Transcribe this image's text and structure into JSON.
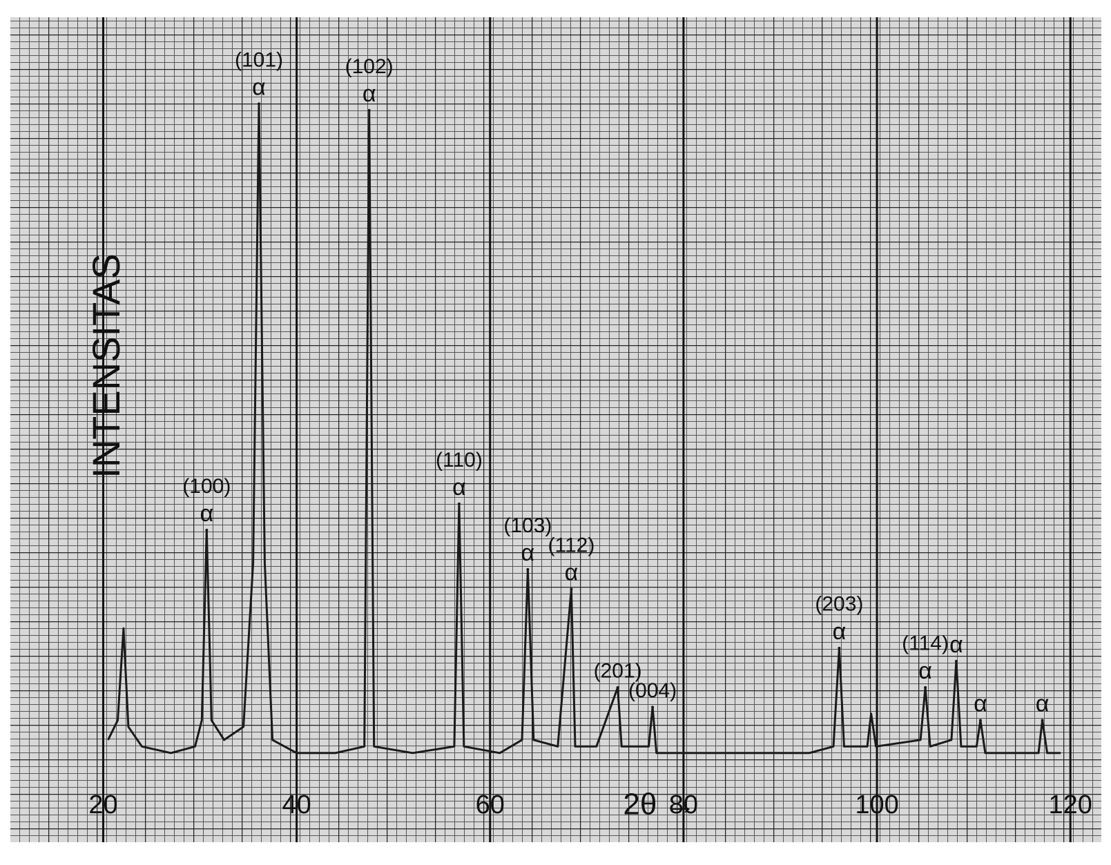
{
  "chart_data": {
    "type": "line",
    "ylabel": "INTENSITAS",
    "xlabel": "2θ →",
    "xlim": [
      10.4,
      123.2
    ],
    "ylim": [
      -12.6,
      113.2
    ],
    "xticks": [
      20,
      40,
      60,
      80,
      100,
      120
    ],
    "grid": true,
    "series": [
      {
        "color": "#1a1a1a",
        "x": [
          20.5,
          21.5,
          22.1,
          22.6,
          24,
          27,
          29.5,
          30.2,
          30.7,
          31.2,
          32.5,
          34.5,
          35.5,
          36.1,
          36.7,
          37.5,
          40,
          44,
          47,
          47.5,
          48,
          52,
          56.3,
          56.8,
          57.3,
          61,
          63.3,
          63.9,
          64.5,
          67,
          68.4,
          68.8,
          71,
          73.2,
          73.6,
          76.4,
          76.8,
          77.2,
          85,
          93,
          95.5,
          96.1,
          96.6,
          99,
          99.4,
          99.9,
          104.5,
          105,
          105.5,
          107.7,
          108.2,
          108.7,
          110.3,
          110.7,
          111.2,
          116.7,
          117.1,
          117.6,
          119
        ],
        "values": [
          3,
          6,
          20,
          5,
          2,
          1,
          2,
          6,
          35,
          6,
          3,
          5,
          30,
          100,
          30,
          3,
          1,
          1,
          2,
          99,
          2,
          1,
          2,
          39,
          2,
          1,
          3,
          29,
          3,
          2,
          26,
          2,
          2,
          11,
          2,
          2,
          8,
          1,
          1,
          1,
          2,
          17,
          2,
          2,
          7,
          2,
          3,
          11,
          2,
          3,
          15,
          2,
          2,
          6,
          1,
          1,
          6,
          1,
          1
        ]
      }
    ],
    "peaks": {
      "x": [
        30.7,
        36.1,
        47.5,
        56.8,
        63.9,
        68.4,
        73.2,
        76.8,
        96.1,
        105,
        108.2,
        110.7,
        117.1
      ],
      "values": [
        35,
        100,
        99,
        39,
        29,
        26,
        11,
        8,
        17,
        11,
        15,
        6,
        6
      ],
      "labels": [
        "(100)",
        "(101)",
        "(102)",
        "(110)",
        "(103)",
        "(112)",
        "(201)",
        "(004)",
        "(203)",
        "(114)",
        null,
        null,
        null
      ],
      "phases": [
        "α",
        "α",
        "α",
        "α",
        "α",
        "α",
        null,
        null,
        "α",
        "α",
        "α",
        "α",
        "α"
      ]
    }
  }
}
